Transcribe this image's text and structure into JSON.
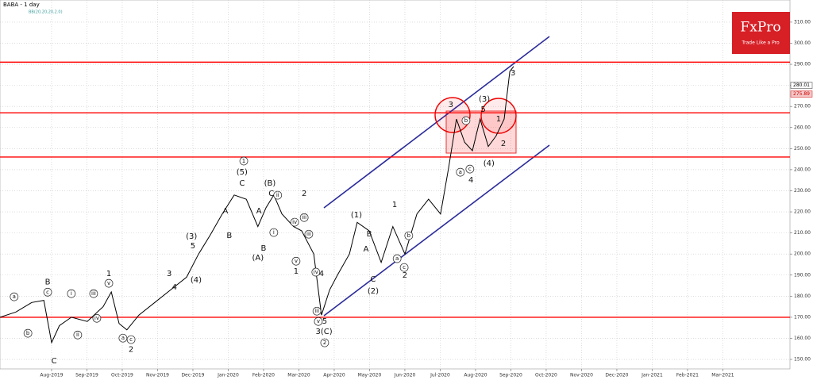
{
  "chart_data": {
    "type": "line",
    "title": "BABA - 1 day",
    "subtitle": "BB(20,20,20,2.0)",
    "brand": "FxPro",
    "tagline": "Trade Like a Pro",
    "color": "#000000",
    "grid": true,
    "x": [
      -0.46,
      -0.01,
      0.44,
      0.78,
      1.0,
      1.22,
      1.56,
      2.01,
      2.46,
      2.69,
      2.91,
      3.13,
      3.47,
      3.92,
      4.37,
      4.82,
      5.16,
      5.49,
      5.83,
      6.17,
      6.51,
      6.84,
      7.07,
      7.29,
      7.52,
      7.85,
      8.08,
      8.42,
      8.64,
      8.87,
      9.09,
      9.43,
      9.65,
      9.99,
      10.33,
      10.66,
      11.0,
      11.34,
      11.67,
      12.01,
      12.24,
      12.46,
      12.69,
      12.91,
      13.13,
      13.36,
      13.58,
      13.81,
      13.97,
      14.08
    ],
    "values": [
      170,
      172.5,
      177,
      178,
      158,
      166,
      170,
      168,
      175,
      182,
      167,
      164,
      171,
      177,
      183,
      189,
      200,
      209,
      219,
      228,
      226,
      213,
      222,
      228,
      219,
      213,
      211,
      200,
      171,
      183,
      190,
      200,
      215,
      211,
      196,
      213,
      200,
      219,
      226,
      219,
      241,
      264,
      253,
      249,
      264,
      251,
      256,
      264,
      286.6,
      289
    ],
    "xlim": [
      -0.46,
      21.9
    ],
    "xticks": [
      {
        "value": 1,
        "label": "Aug-2019"
      },
      {
        "value": 2,
        "label": "Sep-2019"
      },
      {
        "value": 3,
        "label": "Oct-2019"
      },
      {
        "value": 4,
        "label": "Nov-2019"
      },
      {
        "value": 5,
        "label": "Dec-2019"
      },
      {
        "value": 6,
        "label": "Jan-2020"
      },
      {
        "value": 7,
        "label": "Feb-2020"
      },
      {
        "value": 8,
        "label": "Mar-2020"
      },
      {
        "value": 9,
        "label": "Apr-2020"
      },
      {
        "value": 10,
        "label": "May-2020"
      },
      {
        "value": 11,
        "label": "Jun-2020"
      },
      {
        "value": 12,
        "label": "Jul-2020"
      },
      {
        "value": 13,
        "label": "Aug-2020"
      },
      {
        "value": 14,
        "label": "Sep-2020"
      },
      {
        "value": 15,
        "label": "Oct-2020"
      },
      {
        "value": 16,
        "label": "Nov-2020"
      },
      {
        "value": 17,
        "label": "Dec-2020"
      },
      {
        "value": 18,
        "label": "Jan-2021"
      },
      {
        "value": 19,
        "label": "Feb-2021"
      },
      {
        "value": 20,
        "label": "Mar-2021"
      }
    ],
    "ylim": [
      145.5,
      320.5
    ],
    "yticks": [
      {
        "value": 150,
        "label": "150.00"
      },
      {
        "value": 160,
        "label": "160.00"
      },
      {
        "value": 170,
        "label": "170.00"
      },
      {
        "value": 180,
        "label": "180.00"
      },
      {
        "value": 190,
        "label": "190.00"
      },
      {
        "value": 200,
        "label": "200.00"
      },
      {
        "value": 210,
        "label": "210.00"
      },
      {
        "value": 220,
        "label": "220.00"
      },
      {
        "value": 230,
        "label": "230.00"
      },
      {
        "value": 240,
        "label": "240.00"
      },
      {
        "value": 250,
        "label": "250.00"
      },
      {
        "value": 260,
        "label": "260.00"
      },
      {
        "value": 270,
        "label": "270.00"
      },
      {
        "value": 280,
        "label": "280.00"
      },
      {
        "value": 290,
        "label": "290.00"
      },
      {
        "value": 300,
        "label": "300.00"
      },
      {
        "value": 310,
        "label": "310.00"
      }
    ],
    "levels": [
      291,
      267,
      246,
      170
    ],
    "level_color": "#ff0000",
    "price_labels": [
      280.01,
      275.89
    ],
    "annotations": [
      {
        "text": "a",
        "x": -0.06,
        "y": 179.7,
        "circled": true
      },
      {
        "text": "b",
        "x": 0.33,
        "y": 162.4,
        "circled": true
      },
      {
        "text": "B",
        "x": 0.89,
        "y": 186.8
      },
      {
        "text": "c",
        "x": 0.89,
        "y": 181.9,
        "circled": true
      },
      {
        "text": "C",
        "x": 1.07,
        "y": 149.2
      },
      {
        "text": "i",
        "x": 1.56,
        "y": 181.2,
        "circled": true
      },
      {
        "text": "ii",
        "x": 1.74,
        "y": 161.6,
        "circled": true
      },
      {
        "text": "iii",
        "x": 2.19,
        "y": 181.2,
        "circled": true
      },
      {
        "text": "iv",
        "x": 2.28,
        "y": 169.5,
        "circled": true
      },
      {
        "text": "1",
        "x": 2.62,
        "y": 190.6
      },
      {
        "text": "v",
        "x": 2.62,
        "y": 186.1,
        "circled": true
      },
      {
        "text": "a",
        "x": 3.02,
        "y": 160.1,
        "circled": true
      },
      {
        "text": "c",
        "x": 3.25,
        "y": 159.4,
        "circled": true
      },
      {
        "text": "2",
        "x": 3.25,
        "y": 154.8
      },
      {
        "text": "3",
        "x": 4.33,
        "y": 190.6
      },
      {
        "text": "4",
        "x": 4.48,
        "y": 184.2
      },
      {
        "text": "(3)",
        "x": 4.96,
        "y": 208.3
      },
      {
        "text": "5",
        "x": 5.0,
        "y": 203.8
      },
      {
        "text": "(4)",
        "x": 5.09,
        "y": 187.6
      },
      {
        "text": "A",
        "x": 5.92,
        "y": 220.4
      },
      {
        "text": "B",
        "x": 6.03,
        "y": 208.7
      },
      {
        "text": "1",
        "x": 6.44,
        "y": 244.1,
        "circled": true
      },
      {
        "text": "(5)",
        "x": 6.39,
        "y": 238.8
      },
      {
        "text": "C",
        "x": 6.39,
        "y": 233.5
      },
      {
        "text": "A",
        "x": 6.87,
        "y": 220.4
      },
      {
        "text": "B",
        "x": 7.0,
        "y": 202.7
      },
      {
        "text": "(A)",
        "x": 6.84,
        "y": 198.1
      },
      {
        "text": "(B)",
        "x": 7.18,
        "y": 233.5
      },
      {
        "text": "C",
        "x": 7.22,
        "y": 228.6
      },
      {
        "text": "ii",
        "x": 7.4,
        "y": 227.9,
        "circled": true
      },
      {
        "text": "i",
        "x": 7.29,
        "y": 210.2,
        "circled": true
      },
      {
        "text": "2",
        "x": 8.15,
        "y": 228.6
      },
      {
        "text": "iii",
        "x": 8.15,
        "y": 217.3,
        "circled": true
      },
      {
        "text": "iv",
        "x": 7.88,
        "y": 215.1,
        "circled": true
      },
      {
        "text": "iii",
        "x": 8.28,
        "y": 209.4,
        "circled": true
      },
      {
        "text": "v",
        "x": 7.92,
        "y": 196.6,
        "circled": true
      },
      {
        "text": "1",
        "x": 7.92,
        "y": 191.7
      },
      {
        "text": "iv",
        "x": 8.48,
        "y": 191.4,
        "circled": true
      },
      {
        "text": "4",
        "x": 8.64,
        "y": 190.6
      },
      {
        "text": "iii",
        "x": 8.51,
        "y": 172.9,
        "circled": true
      },
      {
        "text": "v",
        "x": 8.55,
        "y": 168.0,
        "circled": true
      },
      {
        "text": "5",
        "x": 8.73,
        "y": 168.0
      },
      {
        "text": "3(C)",
        "x": 8.71,
        "y": 163.1
      },
      {
        "text": "2",
        "x": 8.73,
        "y": 157.9,
        "circled": true
      },
      {
        "text": "(1)",
        "x": 9.63,
        "y": 218.5
      },
      {
        "text": "B",
        "x": 9.99,
        "y": 209.4
      },
      {
        "text": "A",
        "x": 9.9,
        "y": 202.3
      },
      {
        "text": "C",
        "x": 10.1,
        "y": 188.0
      },
      {
        "text": "(2)",
        "x": 10.1,
        "y": 182.3
      },
      {
        "text": "1",
        "x": 10.71,
        "y": 223.4
      },
      {
        "text": "a",
        "x": 10.78,
        "y": 197.8,
        "circled": true
      },
      {
        "text": "b",
        "x": 11.11,
        "y": 208.7,
        "circled": true
      },
      {
        "text": "c",
        "x": 10.98,
        "y": 193.6,
        "circled": true
      },
      {
        "text": "2",
        "x": 11.0,
        "y": 189.9
      },
      {
        "text": "3",
        "x": 12.3,
        "y": 270.8
      },
      {
        "text": "b",
        "x": 12.73,
        "y": 263.3,
        "circled": true
      },
      {
        "text": "a",
        "x": 12.57,
        "y": 238.8,
        "circled": true
      },
      {
        "text": "c",
        "x": 12.84,
        "y": 240.3,
        "circled": true
      },
      {
        "text": "4",
        "x": 12.87,
        "y": 235.0
      },
      {
        "text": "(3)",
        "x": 13.25,
        "y": 273.4
      },
      {
        "text": "5",
        "x": 13.22,
        "y": 268.5
      },
      {
        "text": "(4)",
        "x": 13.38,
        "y": 242.9
      },
      {
        "text": "1",
        "x": 13.65,
        "y": 264.0
      },
      {
        "text": "2",
        "x": 13.79,
        "y": 252.4
      },
      {
        "text": "3",
        "x": 14.06,
        "y": 285.9
      }
    ]
  }
}
